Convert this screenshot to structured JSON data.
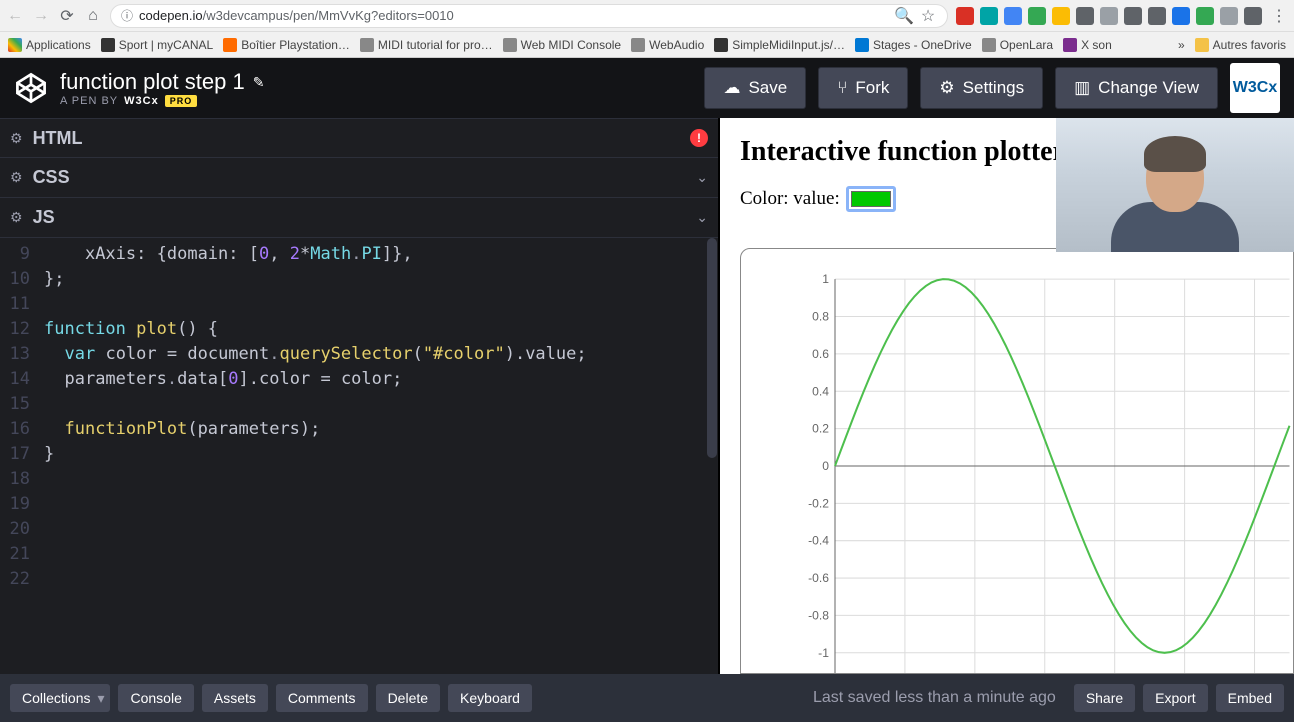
{
  "browser": {
    "url_host": "codepen.io",
    "url_path": "/w3devcampus/pen/MmVvKg?editors=0010",
    "bookmarks": [
      {
        "label": "Applications",
        "color": "#d93025"
      },
      {
        "label": "Sport | myCANAL",
        "color": "#333"
      },
      {
        "label": "Boîtier Playstation…",
        "color": "#ff6b00"
      },
      {
        "label": "MIDI tutorial for pro…",
        "color": "#888"
      },
      {
        "label": "Web MIDI Console",
        "color": "#888"
      },
      {
        "label": "WebAudio",
        "color": "#888"
      },
      {
        "label": "SimpleMidiInput.js/…",
        "color": "#333"
      },
      {
        "label": "Stages - OneDrive",
        "color": "#0078d4"
      },
      {
        "label": "OpenLara",
        "color": "#888"
      },
      {
        "label": "X son",
        "color": "#7b2d8e"
      }
    ],
    "other_bookmarks": "Autres favoris",
    "ext_colors": [
      "#d93025",
      "#00a4a6",
      "#4285f4",
      "#34a853",
      "#fbbc04",
      "#5f6368",
      "#9aa0a6",
      "#5f6368",
      "#5f6368",
      "#1a73e8",
      "#34a853",
      "#9aa0a6",
      "#5f6368"
    ]
  },
  "header": {
    "title": "function plot step 1",
    "byline_prefix": "A PEN BY",
    "author": "W3Cx",
    "pro": "PRO",
    "buttons": {
      "save": "Save",
      "fork": "Fork",
      "settings": "Settings",
      "change_view": "Change View"
    },
    "avatar_text": "W3Cx"
  },
  "panels": {
    "html": "HTML",
    "css": "CSS",
    "js": "JS"
  },
  "code": {
    "start_line": 9,
    "lines": [
      {
        "n": 9,
        "indent": "    ",
        "tokens": [
          [
            "id",
            "xAxis"
          ],
          [
            "op",
            ": {"
          ],
          [
            "id",
            "domain"
          ],
          [
            "op",
            ": ["
          ],
          [
            "num",
            "0"
          ],
          [
            "op",
            ", "
          ],
          [
            "num",
            "2"
          ],
          [
            "op",
            "*"
          ],
          [
            "const",
            "Math"
          ],
          [
            "dot",
            "."
          ],
          [
            "const",
            "PI"
          ],
          [
            "op",
            "]},"
          ]
        ]
      },
      {
        "n": 10,
        "indent": "",
        "tokens": [
          [
            "op",
            "};"
          ]
        ]
      },
      {
        "n": 11,
        "indent": "",
        "tokens": []
      },
      {
        "n": 12,
        "indent": "",
        "tokens": [
          [
            "kw",
            "function"
          ],
          [
            "op",
            " "
          ],
          [
            "fn",
            "plot"
          ],
          [
            "op",
            "() {"
          ]
        ]
      },
      {
        "n": 13,
        "indent": "  ",
        "tokens": [
          [
            "kw",
            "var"
          ],
          [
            "op",
            " "
          ],
          [
            "id",
            "color"
          ],
          [
            "op",
            " = "
          ],
          [
            "id",
            "document"
          ],
          [
            "dot",
            "."
          ],
          [
            "fn",
            "querySelector"
          ],
          [
            "op",
            "("
          ],
          [
            "str",
            "\"#color\""
          ],
          [
            "op",
            ")."
          ],
          [
            "id",
            "value"
          ],
          [
            "op",
            ";"
          ]
        ]
      },
      {
        "n": 14,
        "indent": "  ",
        "tokens": [
          [
            "id",
            "parameters"
          ],
          [
            "dot",
            "."
          ],
          [
            "prop",
            "data"
          ],
          [
            "op",
            "["
          ],
          [
            "num",
            "0"
          ],
          [
            "op",
            "]."
          ],
          [
            "id",
            "color"
          ],
          [
            "op",
            " = "
          ],
          [
            "id",
            "color"
          ],
          [
            "op",
            ";"
          ]
        ]
      },
      {
        "n": 15,
        "indent": "",
        "tokens": []
      },
      {
        "n": 16,
        "indent": "  ",
        "tokens": [
          [
            "fn",
            "functionPlot"
          ],
          [
            "op",
            "("
          ],
          [
            "id",
            "parameters"
          ],
          [
            "op",
            ");"
          ]
        ]
      },
      {
        "n": 17,
        "indent": "",
        "tokens": [
          [
            "op",
            "}"
          ]
        ]
      },
      {
        "n": 18,
        "indent": "",
        "tokens": []
      },
      {
        "n": 19,
        "indent": "",
        "tokens": []
      },
      {
        "n": 20,
        "indent": "",
        "tokens": []
      },
      {
        "n": 21,
        "indent": "",
        "tokens": []
      },
      {
        "n": 22,
        "indent": "",
        "tokens": []
      }
    ]
  },
  "preview": {
    "heading": "Interactive function plotter",
    "color_label": "Color: value:",
    "swatch_color": "#00c800"
  },
  "chart": {
    "type": "line",
    "curve_color": "#4dbf4d",
    "curve_width": 2,
    "grid_color": "#dcdcdc",
    "axis_color": "#666666",
    "tick_font_size": 12,
    "tick_color": "#666666",
    "background": "#ffffff",
    "xlim": [
      0,
      6.5
    ],
    "ylim": [
      -1,
      1
    ],
    "yticks": [
      1,
      0.8,
      0.6,
      0.4,
      0.2,
      0,
      -0.2,
      -0.4,
      -0.6,
      -0.8,
      -1
    ],
    "samples": 80
  },
  "footer": {
    "collections": "Collections",
    "console": "Console",
    "assets": "Assets",
    "comments": "Comments",
    "delete": "Delete",
    "keyboard": "Keyboard",
    "status": "Last saved less than a minute ago",
    "share": "Share",
    "export": "Export",
    "embed": "Embed"
  }
}
